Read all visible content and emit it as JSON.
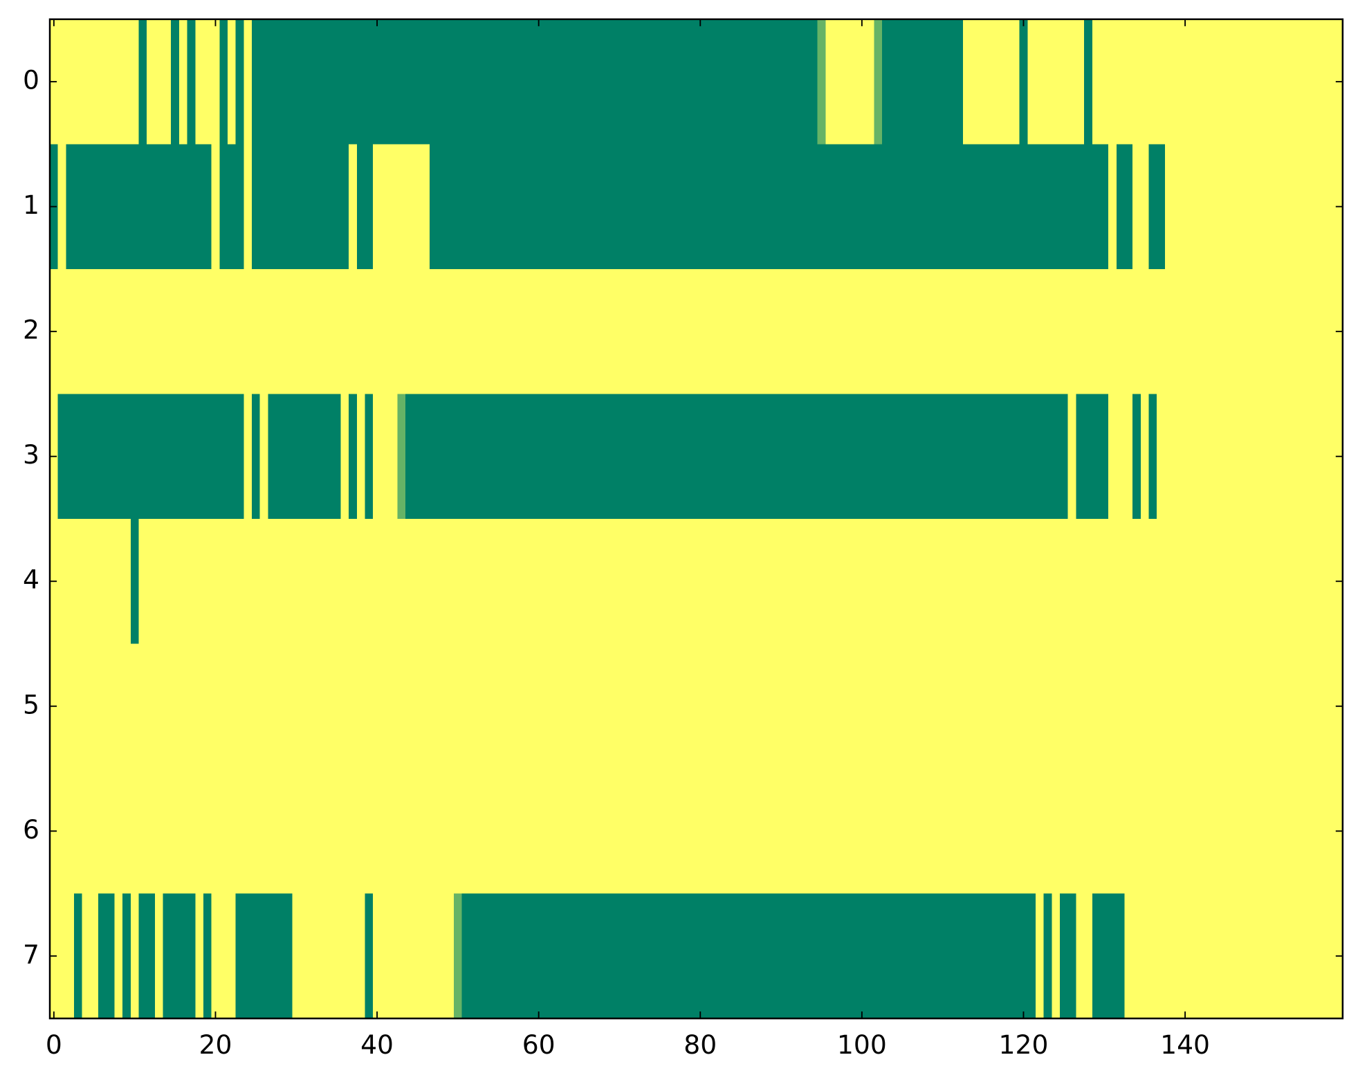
{
  "chart_data": {
    "type": "heatmap",
    "colormap": "summer",
    "vmin": 0,
    "vmax": 1,
    "xlim": [
      -0.5,
      159.5
    ],
    "ylim": [
      7.5,
      -0.5
    ],
    "xticks": [
      0,
      20,
      40,
      60,
      80,
      100,
      120,
      140
    ],
    "yticks": [
      0,
      1,
      2,
      3,
      4,
      5,
      6,
      7
    ],
    "z": [
      [
        1,
        1,
        1,
        1,
        1,
        1,
        1,
        1,
        1,
        1,
        1,
        0,
        1,
        1,
        1,
        0,
        1,
        0,
        1,
        1,
        1,
        0,
        1,
        0,
        1,
        0,
        0,
        0,
        0,
        0,
        0,
        0,
        0,
        0,
        0,
        0,
        0,
        0,
        0,
        0,
        0,
        0,
        0,
        0,
        0,
        0,
        0,
        0,
        0,
        0,
        0,
        0,
        0,
        0,
        0,
        0,
        0,
        0,
        0,
        0,
        0,
        0,
        0,
        0,
        0,
        0,
        0,
        0,
        0,
        0,
        0,
        0,
        0,
        0,
        0,
        0,
        0,
        0,
        0,
        0,
        0,
        0,
        0,
        0,
        0,
        0,
        0,
        0,
        0,
        0,
        0,
        0,
        0,
        0,
        0,
        0.4,
        1,
        1,
        1,
        1,
        1,
        1,
        0.4,
        0,
        0,
        0,
        0,
        0,
        0,
        0,
        0,
        0,
        0,
        1,
        1,
        1,
        1,
        1,
        1,
        1,
        0,
        1,
        1,
        1,
        1,
        1,
        1,
        1,
        0,
        1,
        1,
        1,
        1,
        1,
        1,
        1,
        1,
        1,
        1,
        1,
        1,
        1,
        1,
        1,
        1,
        1,
        1,
        1,
        1,
        1,
        1,
        1,
        1,
        1,
        1,
        1,
        1,
        1,
        1,
        1
      ],
      [
        0,
        1,
        0,
        0,
        0,
        0,
        0,
        0,
        0,
        0,
        0,
        0,
        0,
        0,
        0,
        0,
        0,
        0,
        0,
        0,
        1,
        0,
        0,
        0,
        1,
        0,
        0,
        0,
        0,
        0,
        0,
        0,
        0,
        0,
        0,
        0,
        0,
        1,
        0,
        0,
        1,
        1,
        1,
        1,
        1,
        1,
        1,
        0,
        0,
        0,
        0,
        0,
        0,
        0,
        0,
        0,
        0,
        0,
        0,
        0,
        0,
        0,
        0,
        0,
        0,
        0,
        0,
        0,
        0,
        0,
        0,
        0,
        0,
        0,
        0,
        0,
        0,
        0,
        0,
        0,
        0,
        0,
        0,
        0,
        0,
        0,
        0,
        0,
        0,
        0,
        0,
        0,
        0,
        0,
        0,
        0,
        0,
        0,
        0,
        0,
        0,
        0,
        0,
        0,
        0,
        0,
        0,
        0,
        0,
        0,
        0,
        0,
        0,
        0,
        0,
        0,
        0,
        0,
        0,
        0,
        0,
        0,
        0,
        0,
        0,
        0,
        0,
        0,
        0,
        0,
        0,
        1,
        0,
        0,
        1,
        1,
        0,
        0,
        1,
        1,
        1,
        1,
        1,
        1,
        1,
        1,
        1,
        1,
        1,
        1,
        1,
        1,
        1,
        1,
        1,
        1,
        1,
        1,
        1,
        1
      ],
      [
        1,
        1,
        1,
        1,
        1,
        1,
        1,
        1,
        1,
        1,
        1,
        1,
        1,
        1,
        1,
        1,
        1,
        1,
        1,
        1,
        1,
        1,
        1,
        1,
        1,
        1,
        1,
        1,
        1,
        1,
        1,
        1,
        1,
        1,
        1,
        1,
        1,
        1,
        1,
        1,
        1,
        1,
        1,
        1,
        1,
        1,
        1,
        1,
        1,
        1,
        1,
        1,
        1,
        1,
        1,
        1,
        1,
        1,
        1,
        1,
        1,
        1,
        1,
        1,
        1,
        1,
        1,
        1,
        1,
        1,
        1,
        1,
        1,
        1,
        1,
        1,
        1,
        1,
        1,
        1,
        1,
        1,
        1,
        1,
        1,
        1,
        1,
        1,
        1,
        1,
        1,
        1,
        1,
        1,
        1,
        1,
        1,
        1,
        1,
        1,
        1,
        1,
        1,
        1,
        1,
        1,
        1,
        1,
        1,
        1,
        1,
        1,
        1,
        1,
        1,
        1,
        1,
        1,
        1,
        1,
        1,
        1,
        1,
        1,
        1,
        1,
        1,
        1,
        1,
        1,
        1,
        1,
        1,
        1,
        1,
        1,
        1,
        1,
        1,
        1,
        1,
        1,
        1,
        1,
        1,
        1,
        1,
        1,
        1,
        1,
        1,
        1,
        1,
        1,
        1,
        1,
        1,
        1,
        1,
        1
      ],
      [
        1,
        0,
        0,
        0,
        0,
        0,
        0,
        0,
        0,
        0,
        0,
        0,
        0,
        0,
        0,
        0,
        0,
        0,
        0,
        0,
        0,
        0,
        0,
        0,
        1,
        0,
        1,
        0,
        0,
        0,
        0,
        0,
        0,
        0,
        0,
        0,
        1,
        0,
        1,
        0,
        1,
        1,
        1,
        0.4,
        0,
        0,
        0,
        0,
        0,
        0,
        0,
        0,
        0,
        0,
        0,
        0,
        0,
        0,
        0,
        0,
        0,
        0,
        0,
        0,
        0,
        0,
        0,
        0,
        0,
        0,
        0,
        0,
        0,
        0,
        0,
        0,
        0,
        0,
        0,
        0,
        0,
        0,
        0,
        0,
        0,
        0,
        0,
        0,
        0,
        0,
        0,
        0,
        0,
        0,
        0,
        0,
        0,
        0,
        0,
        0,
        0,
        0,
        0,
        0,
        0,
        0,
        0,
        0,
        0,
        0,
        0,
        0,
        0,
        0,
        0,
        0,
        0,
        0,
        0,
        0,
        0,
        0,
        0,
        0,
        0,
        0,
        1,
        0,
        0,
        0,
        0,
        1,
        1,
        1,
        0,
        1,
        0,
        1,
        1,
        1,
        1,
        1,
        1,
        1,
        1,
        1,
        1,
        1,
        1,
        1,
        1,
        1,
        1,
        1,
        1,
        1,
        1,
        1,
        1,
        1
      ],
      [
        1,
        1,
        1,
        1,
        1,
        1,
        1,
        1,
        1,
        1,
        0,
        1,
        1,
        1,
        1,
        1,
        1,
        1,
        1,
        1,
        1,
        1,
        1,
        1,
        1,
        1,
        1,
        1,
        1,
        1,
        1,
        1,
        1,
        1,
        1,
        1,
        1,
        1,
        1,
        1,
        1,
        1,
        1,
        1,
        1,
        1,
        1,
        1,
        1,
        1,
        1,
        1,
        1,
        1,
        1,
        1,
        1,
        1,
        1,
        1,
        1,
        1,
        1,
        1,
        1,
        1,
        1,
        1,
        1,
        1,
        1,
        1,
        1,
        1,
        1,
        1,
        1,
        1,
        1,
        1,
        1,
        1,
        1,
        1,
        1,
        1,
        1,
        1,
        1,
        1,
        1,
        1,
        1,
        1,
        1,
        1,
        1,
        1,
        1,
        1,
        1,
        1,
        1,
        1,
        1,
        1,
        1,
        1,
        1,
        1,
        1,
        1,
        1,
        1,
        1,
        1,
        1,
        1,
        1,
        1,
        1,
        1,
        1,
        1,
        1,
        1,
        1,
        1,
        1,
        1,
        1,
        1,
        1,
        1,
        1,
        1,
        1,
        1,
        1,
        1,
        1,
        1,
        1,
        1,
        1,
        1,
        1,
        1,
        1,
        1,
        1,
        1,
        1,
        1,
        1,
        1,
        1,
        1,
        1,
        1
      ],
      [
        1,
        1,
        1,
        1,
        1,
        1,
        1,
        1,
        1,
        1,
        1,
        1,
        1,
        1,
        1,
        1,
        1,
        1,
        1,
        1,
        1,
        1,
        1,
        1,
        1,
        1,
        1,
        1,
        1,
        1,
        1,
        1,
        1,
        1,
        1,
        1,
        1,
        1,
        1,
        1,
        1,
        1,
        1,
        1,
        1,
        1,
        1,
        1,
        1,
        1,
        1,
        1,
        1,
        1,
        1,
        1,
        1,
        1,
        1,
        1,
        1,
        1,
        1,
        1,
        1,
        1,
        1,
        1,
        1,
        1,
        1,
        1,
        1,
        1,
        1,
        1,
        1,
        1,
        1,
        1,
        1,
        1,
        1,
        1,
        1,
        1,
        1,
        1,
        1,
        1,
        1,
        1,
        1,
        1,
        1,
        1,
        1,
        1,
        1,
        1,
        1,
        1,
        1,
        1,
        1,
        1,
        1,
        1,
        1,
        1,
        1,
        1,
        1,
        1,
        1,
        1,
        1,
        1,
        1,
        1,
        1,
        1,
        1,
        1,
        1,
        1,
        1,
        1,
        1,
        1,
        1,
        1,
        1,
        1,
        1,
        1,
        1,
        1,
        1,
        1,
        1,
        1,
        1,
        1,
        1,
        1,
        1,
        1,
        1,
        1,
        1,
        1,
        1,
        1,
        1,
        1,
        1,
        1,
        1,
        1
      ],
      [
        1,
        1,
        1,
        1,
        1,
        1,
        1,
        1,
        1,
        1,
        1,
        1,
        1,
        1,
        1,
        1,
        1,
        1,
        1,
        1,
        1,
        1,
        1,
        1,
        1,
        1,
        1,
        1,
        1,
        1,
        1,
        1,
        1,
        1,
        1,
        1,
        1,
        1,
        1,
        1,
        1,
        1,
        1,
        1,
        1,
        1,
        1,
        1,
        1,
        1,
        1,
        1,
        1,
        1,
        1,
        1,
        1,
        1,
        1,
        1,
        1,
        1,
        1,
        1,
        1,
        1,
        1,
        1,
        1,
        1,
        1,
        1,
        1,
        1,
        1,
        1,
        1,
        1,
        1,
        1,
        1,
        1,
        1,
        1,
        1,
        1,
        1,
        1,
        1,
        1,
        1,
        1,
        1,
        1,
        1,
        1,
        1,
        1,
        1,
        1,
        1,
        1,
        1,
        1,
        1,
        1,
        1,
        1,
        1,
        1,
        1,
        1,
        1,
        1,
        1,
        1,
        1,
        1,
        1,
        1,
        1,
        1,
        1,
        1,
        1,
        1,
        1,
        1,
        1,
        1,
        1,
        1,
        1,
        1,
        1,
        1,
        1,
        1,
        1,
        1,
        1,
        1,
        1,
        1,
        1,
        1,
        1,
        1,
        1,
        1,
        1,
        1,
        1,
        1,
        1,
        1,
        1,
        1,
        1,
        1
      ],
      [
        1,
        1,
        1,
        0,
        1,
        1,
        0,
        0,
        1,
        0,
        1,
        0,
        0,
        1,
        0,
        0,
        0,
        0,
        1,
        0,
        1,
        1,
        1,
        0,
        0,
        0,
        0,
        0,
        0,
        0,
        1,
        1,
        1,
        1,
        1,
        1,
        1,
        1,
        1,
        0,
        1,
        1,
        1,
        1,
        1,
        1,
        1,
        1,
        1,
        1,
        0.4,
        0,
        0,
        0,
        0,
        0,
        0,
        0,
        0,
        0,
        0,
        0,
        0,
        0,
        0,
        0,
        0,
        0,
        0,
        0,
        0,
        0,
        0,
        0,
        0,
        0,
        0,
        0,
        0,
        0,
        0,
        0,
        0,
        0,
        0,
        0,
        0,
        0,
        0,
        0,
        0,
        0,
        0,
        0,
        0,
        0,
        0,
        0,
        0,
        0,
        0,
        0,
        0,
        0,
        0,
        0,
        0,
        0,
        0,
        0,
        0,
        0,
        0,
        0,
        0,
        0,
        0,
        0,
        0,
        0,
        0,
        0,
        1,
        0,
        1,
        0,
        0,
        1,
        1,
        0,
        0,
        0,
        0,
        1,
        1,
        1,
        1,
        1,
        1,
        1,
        1,
        1,
        1,
        1,
        1,
        1,
        1,
        1,
        1,
        1,
        1,
        1,
        1,
        1,
        1,
        1,
        1,
        1,
        1,
        1
      ]
    ]
  }
}
